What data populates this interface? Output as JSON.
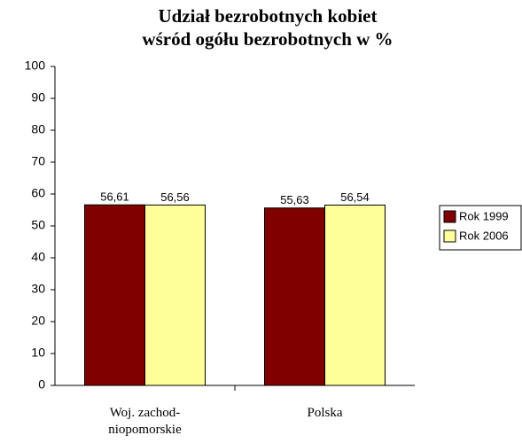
{
  "chart_data": {
    "type": "bar",
    "title": [
      "Udział bezrobotnych kobiet",
      "wśród ogółu bezrobotnych w %"
    ],
    "categories": [
      "Woj. zachod-\nniopomorskie",
      "Polska"
    ],
    "series": [
      {
        "name": "Rok 1999",
        "color": "#800000",
        "values": [
          56.61,
          55.63
        ],
        "value_labels": [
          "56,61",
          "55,63"
        ]
      },
      {
        "name": "Rok 2006",
        "color": "#ffff99",
        "values": [
          56.56,
          56.54
        ],
        "value_labels": [
          "56,56",
          "56,54"
        ]
      }
    ],
    "ylim": [
      0,
      100
    ],
    "yticks": [
      0,
      10,
      20,
      30,
      40,
      50,
      60,
      70,
      80,
      90,
      100
    ],
    "grid": false,
    "legend": "right"
  }
}
